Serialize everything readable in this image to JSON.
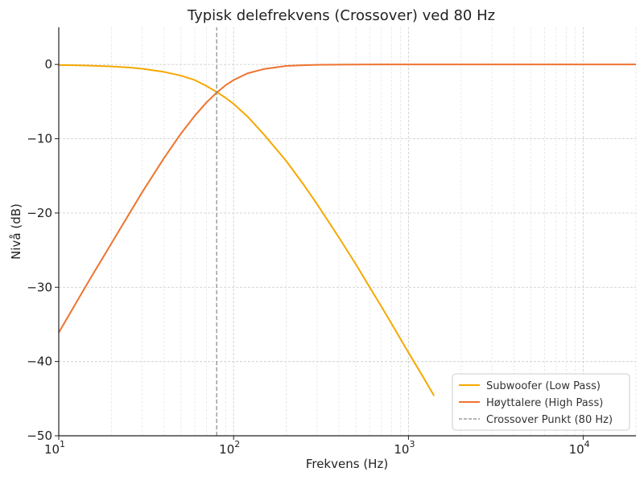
{
  "chart_data": {
    "type": "line",
    "title": "Typisk delefrekvens (Crossover) ved 80 Hz",
    "xlabel": "Frekvens (Hz)",
    "ylabel": "Nivå (dB)",
    "xscale": "log",
    "xlim": [
      10,
      20000
    ],
    "ylim": [
      -50,
      5
    ],
    "xticks": [
      {
        "value": 10,
        "base": "10",
        "exp": "1"
      },
      {
        "value": 100,
        "base": "10",
        "exp": "2"
      },
      {
        "value": 1000,
        "base": "10",
        "exp": "3"
      },
      {
        "value": 10000,
        "base": "10",
        "exp": "4"
      }
    ],
    "yticks": [
      {
        "value": 0,
        "label": "0"
      },
      {
        "value": -10,
        "label": "−10"
      },
      {
        "value": -20,
        "label": "−20"
      },
      {
        "value": -30,
        "label": "−30"
      },
      {
        "value": -40,
        "label": "−40"
      },
      {
        "value": -50,
        "label": "−50"
      }
    ],
    "grid": true,
    "legend_position": "lower-right",
    "series": [
      {
        "name": "Subwoofer (Low Pass)",
        "color": "#f5a800",
        "style": "solid",
        "x": [
          10,
          12,
          15,
          20,
          25,
          30,
          40,
          50,
          60,
          70,
          80,
          90,
          100,
          120,
          150,
          200,
          250,
          300,
          400,
          500,
          600,
          700,
          800,
          1000,
          1200,
          1400
        ],
        "y": [
          -0.07,
          -0.1,
          -0.15,
          -0.26,
          -0.4,
          -0.58,
          -1.0,
          -1.5,
          -2.1,
          -2.9,
          -3.7,
          -4.5,
          -5.3,
          -7.0,
          -9.5,
          -13.0,
          -16.1,
          -18.8,
          -23.3,
          -26.9,
          -30.0,
          -32.6,
          -34.9,
          -38.8,
          -41.9,
          -44.6
        ]
      },
      {
        "name": "Høyttalere (High Pass)",
        "color": "#ee7430",
        "style": "solid",
        "x": [
          10,
          12,
          15,
          20,
          25,
          30,
          40,
          50,
          60,
          70,
          80,
          90,
          100,
          120,
          150,
          200,
          250,
          300,
          400,
          500,
          700,
          1000,
          2000,
          5000,
          10000,
          20000
        ],
        "y": [
          -36.1,
          -32.9,
          -29.0,
          -24.1,
          -20.3,
          -17.2,
          -12.6,
          -9.3,
          -6.9,
          -5.1,
          -3.8,
          -2.8,
          -2.1,
          -1.2,
          -0.6,
          -0.2,
          -0.1,
          -0.05,
          -0.02,
          -0.01,
          0,
          0,
          0,
          0,
          0,
          0
        ]
      },
      {
        "name": "Crossover Punkt (80 Hz)",
        "color": "#888888",
        "style": "dashed",
        "x": [
          80,
          80
        ],
        "y": [
          -50,
          5
        ]
      }
    ]
  }
}
